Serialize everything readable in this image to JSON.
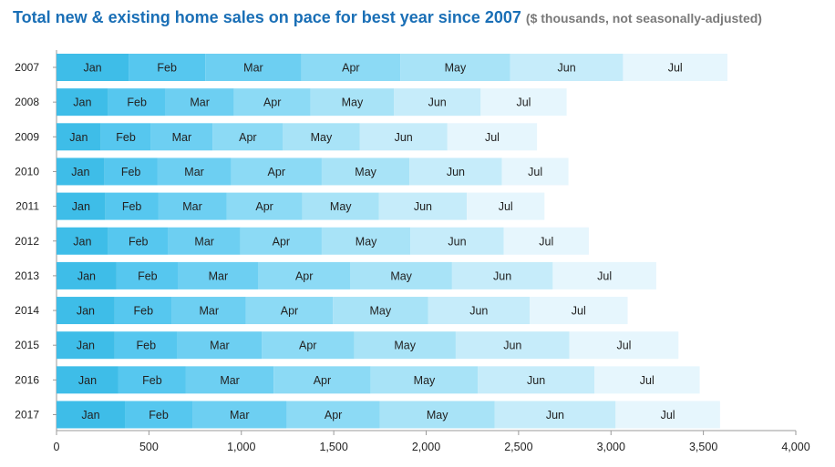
{
  "chart_data": {
    "type": "bar",
    "stacked": true,
    "orientation": "horizontal",
    "title": "Total new & existing home sales on pace for best year since 2007",
    "subtitle": "($ thousands, not seasonally-adjusted)",
    "categories": [
      "2007",
      "2008",
      "2009",
      "2010",
      "2011",
      "2012",
      "2013",
      "2014",
      "2015",
      "2016",
      "2017"
    ],
    "series": [
      {
        "name": "Jan",
        "color": "#3ebde8",
        "values": [
          390,
          280,
          240,
          260,
          265,
          280,
          325,
          315,
          315,
          335,
          370
        ]
      },
      {
        "name": "Feb",
        "color": "#56c7ef",
        "values": [
          415,
          310,
          270,
          285,
          285,
          325,
          335,
          310,
          340,
          365,
          365
        ]
      },
      {
        "name": "Mar",
        "color": "#6dcff2",
        "values": [
          520,
          370,
          335,
          400,
          370,
          390,
          430,
          400,
          455,
          475,
          510
        ]
      },
      {
        "name": "Apr",
        "color": "#8cdaf5",
        "values": [
          535,
          415,
          380,
          490,
          410,
          440,
          500,
          470,
          500,
          525,
          505
        ]
      },
      {
        "name": "May",
        "color": "#a8e3f7",
        "values": [
          595,
          450,
          415,
          475,
          415,
          480,
          550,
          515,
          550,
          580,
          620
        ]
      },
      {
        "name": "Jun",
        "color": "#c6ecfa",
        "values": [
          610,
          470,
          475,
          500,
          475,
          505,
          545,
          550,
          615,
          630,
          655
        ]
      },
      {
        "name": "Jul",
        "color": "#e6f6fd",
        "values": [
          565,
          465,
          485,
          360,
          420,
          460,
          560,
          530,
          590,
          570,
          565
        ]
      }
    ],
    "x_ticks": [
      0,
      500,
      1000,
      1500,
      2000,
      2500,
      3000,
      3500,
      4000
    ],
    "x_tick_labels": [
      "0",
      "500",
      "1,000",
      "1,500",
      "2,000",
      "2,500",
      "3,000",
      "3,500",
      "4,000"
    ],
    "xlim": [
      0,
      4000
    ],
    "xlabel": "",
    "ylabel": "",
    "grid": false,
    "segment_labels": "series name inside each segment"
  }
}
